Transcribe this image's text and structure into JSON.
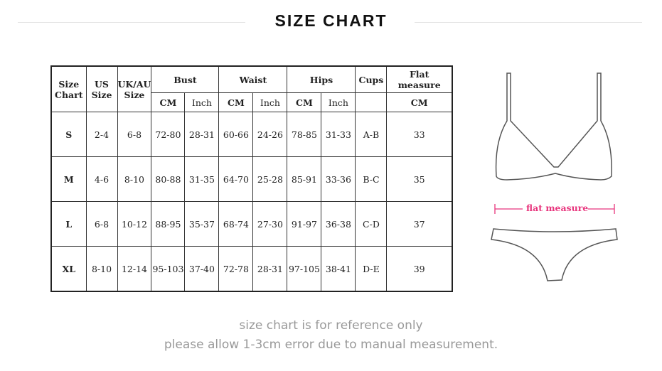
{
  "title": "SIZE CHART",
  "table": {
    "headers": {
      "size_chart": "Size Chart",
      "us_size": "US Size",
      "uk_au_size": "UK/AU Size",
      "bust": "Bust",
      "waist": "Waist",
      "hips": "Hips",
      "cups": "Cups",
      "flat_measure": "Flat measure",
      "cm": "CM",
      "inch": "Inch"
    },
    "rows": [
      [
        "S",
        "2-4",
        "6-8",
        "72-80",
        "28-31",
        "60-66",
        "24-26",
        "78-85",
        "31-33",
        "A-B",
        "33"
      ],
      [
        "M",
        "4-6",
        "8-10",
        "80-88",
        "31-35",
        "64-70",
        "25-28",
        "85-91",
        "33-36",
        "B-C",
        "35"
      ],
      [
        "L",
        "6-8",
        "10-12",
        "88-95",
        "35-37",
        "68-74",
        "27-30",
        "91-97",
        "36-38",
        "C-D",
        "37"
      ],
      [
        "XL",
        "8-10",
        "12-14",
        "95-103",
        "37-40",
        "72-78",
        "28-31",
        "97-105",
        "38-41",
        "D-E",
        "39"
      ]
    ]
  },
  "illustration": {
    "label": "flat measure",
    "label_color": "#e8357d"
  },
  "notes": [
    "size chart is for reference only",
    "please allow 1-3cm error due to manual measurement."
  ]
}
